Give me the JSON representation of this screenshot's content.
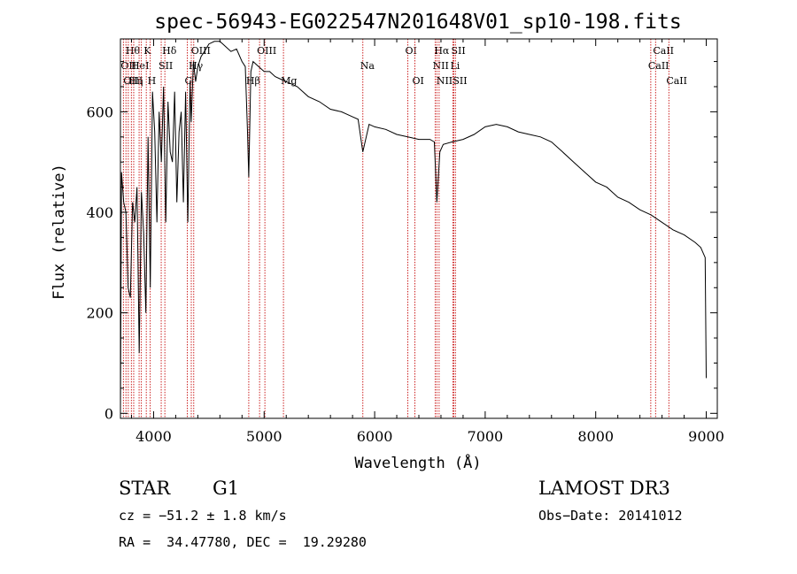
{
  "chart_data": {
    "type": "line",
    "title": "spec-56943-EG022547N201648V01_sp10-198.fits",
    "xlabel": "Wavelength (Å)",
    "ylabel": "Flux (relative)",
    "xlim": [
      3700,
      9100
    ],
    "ylim": [
      -10,
      745
    ],
    "xticks": [
      4000,
      5000,
      6000,
      7000,
      8000,
      9000
    ],
    "xtick_labels": [
      "4000",
      "5000",
      "6000",
      "7000",
      "8000",
      "9000"
    ],
    "yticks": [
      0,
      200,
      400,
      600
    ],
    "ytick_labels": [
      "0",
      "200",
      "400",
      "600"
    ],
    "grid": false,
    "line_color": "#000000",
    "marker_color": "#cc2222",
    "series": [
      {
        "name": "flux",
        "x": [
          3700,
          3710,
          3730,
          3750,
          3770,
          3790,
          3810,
          3830,
          3850,
          3870,
          3890,
          3910,
          3930,
          3950,
          3970,
          3990,
          4010,
          4030,
          4050,
          4070,
          4090,
          4110,
          4130,
          4150,
          4170,
          4190,
          4210,
          4230,
          4250,
          4270,
          4290,
          4310,
          4330,
          4340,
          4360,
          4380,
          4400,
          4430,
          4460,
          4500,
          4550,
          4600,
          4650,
          4700,
          4750,
          4800,
          4830,
          4850,
          4861,
          4880,
          4900,
          4950,
          5000,
          5050,
          5100,
          5150,
          5200,
          5250,
          5300,
          5400,
          5500,
          5600,
          5700,
          5800,
          5850,
          5893,
          5950,
          6000,
          6100,
          6200,
          6300,
          6400,
          6500,
          6540,
          6563,
          6590,
          6620,
          6700,
          6800,
          6900,
          7000,
          7100,
          7200,
          7300,
          7400,
          7500,
          7600,
          7700,
          7800,
          7900,
          8000,
          8100,
          8200,
          8300,
          8400,
          8500,
          8600,
          8700,
          8800,
          8900,
          8950,
          8990,
          9000
        ],
        "y": [
          5,
          480,
          420,
          400,
          250,
          230,
          420,
          380,
          450,
          120,
          440,
          360,
          200,
          550,
          250,
          640,
          560,
          380,
          600,
          500,
          650,
          380,
          620,
          520,
          500,
          640,
          420,
          560,
          600,
          420,
          640,
          380,
          660,
          580,
          700,
          660,
          690,
          710,
          720,
          735,
          740,
          740,
          730,
          720,
          725,
          700,
          690,
          560,
          470,
          680,
          700,
          690,
          680,
          680,
          670,
          665,
          660,
          655,
          650,
          630,
          620,
          605,
          600,
          590,
          585,
          520,
          575,
          570,
          565,
          555,
          550,
          545,
          545,
          540,
          420,
          520,
          535,
          540,
          545,
          555,
          570,
          575,
          570,
          560,
          555,
          550,
          540,
          520,
          500,
          480,
          460,
          450,
          430,
          420,
          405,
          395,
          380,
          365,
          355,
          340,
          330,
          310,
          70
        ]
      }
    ],
    "line_markers": [
      {
        "w": 3727,
        "label": "OII",
        "row": 1
      },
      {
        "w": 3750,
        "label": "OIII",
        "row": 2
      },
      {
        "w": 3771,
        "label": "Hθ",
        "row": 0
      },
      {
        "w": 3799,
        "label": "Hη",
        "row": 2
      },
      {
        "w": 3820,
        "label": "HeI",
        "row": 1
      },
      {
        "w": 3869,
        "label": "",
        "row": 0
      },
      {
        "w": 3889,
        "label": "",
        "row": 0
      },
      {
        "w": 3934,
        "label": "K",
        "row": 0
      },
      {
        "w": 3969,
        "label": "H",
        "row": 2
      },
      {
        "w": 4069,
        "label": "SII",
        "row": 1
      },
      {
        "w": 4102,
        "label": "Hδ",
        "row": 0
      },
      {
        "w": 4305,
        "label": "G",
        "row": 2
      },
      {
        "w": 4341,
        "label": "Hγ",
        "row": 1
      },
      {
        "w": 4363,
        "label": "OIII",
        "row": 0
      },
      {
        "w": 4861,
        "label": "Hβ",
        "row": 2
      },
      {
        "w": 4959,
        "label": "OIII",
        "row": 0
      },
      {
        "w": 5007,
        "label": "",
        "row": 0
      },
      {
        "w": 5175,
        "label": "Mg",
        "row": 2
      },
      {
        "w": 5893,
        "label": "Na",
        "row": 1
      },
      {
        "w": 6300,
        "label": "OI",
        "row": 0
      },
      {
        "w": 6364,
        "label": "OI",
        "row": 2
      },
      {
        "w": 6548,
        "label": "NII",
        "row": 1
      },
      {
        "w": 6563,
        "label": "Hα",
        "row": 0
      },
      {
        "w": 6583,
        "label": "NII",
        "row": 2
      },
      {
        "w": 6708,
        "label": "Li",
        "row": 1
      },
      {
        "w": 6716,
        "label": "SII",
        "row": 0
      },
      {
        "w": 6731,
        "label": "SII",
        "row": 2
      },
      {
        "w": 8498,
        "label": "CaII",
        "row": 1
      },
      {
        "w": 8542,
        "label": "CaII",
        "row": 0
      },
      {
        "w": 8662,
        "label": "CaII",
        "row": 2
      }
    ]
  },
  "info": {
    "class_label": "STAR",
    "subclass": "G1",
    "survey": "LAMOST DR3",
    "cz": "cz = −51.2 ± 1.8 km/s",
    "obs_date": "Obs−Date: 20141012",
    "coords": "RA =  34.47780, DEC =  19.29280"
  }
}
